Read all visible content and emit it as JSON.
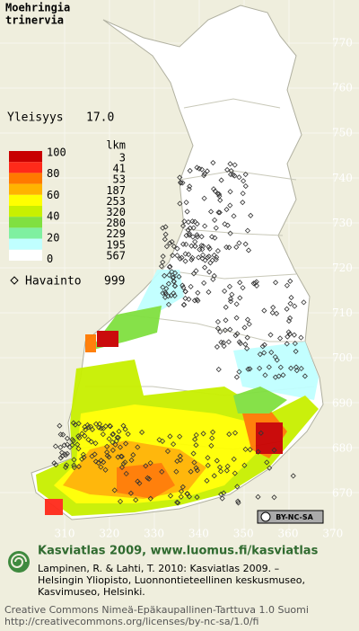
{
  "species": {
    "genus": "Moehringia",
    "epithet": "trinervia"
  },
  "frequency": {
    "label": "Yleisyys",
    "value": "17.0"
  },
  "legend": {
    "scale_labels": [
      "100",
      "80",
      "60",
      "40",
      "20",
      "0"
    ],
    "count_header": "lkm",
    "counts": [
      "3",
      "41",
      "53",
      "187",
      "253",
      "320",
      "280",
      "229",
      "195",
      "567"
    ],
    "colors": [
      "#c80000",
      "#ff2a1a",
      "#ff7a00",
      "#ffb400",
      "#ffff00",
      "#c8f000",
      "#80e040",
      "#7ff0a0",
      "#c0ffff",
      "#ffffff"
    ]
  },
  "observations": {
    "label": "Havainto",
    "value": "999"
  },
  "axes": {
    "y_labels": [
      "770",
      "760",
      "750",
      "740",
      "730",
      "720",
      "710",
      "700",
      "690",
      "680",
      "670"
    ],
    "x_labels": [
      "310",
      "320",
      "330",
      "340",
      "350",
      "360",
      "370"
    ]
  },
  "license_badge": "BY-NC-SA",
  "footer": {
    "headline": "Kasviatlas 2009, www.luomus.fi/kasviatlas",
    "citation": [
      "Lampinen, R. & Lahti, T. 2010: Kasviatlas 2009. –",
      "Helsingin Yliopisto, Luonnontieteellinen keskusmuseo,",
      "Kasvimuseo, Helsinki."
    ],
    "license": [
      "Creative Commons Nimeä-Epäkaupallinen-Tarttuva 1.0 Suomi",
      "http://creativecommons.org/licenses/by-nc-sa/1.0/fi"
    ]
  }
}
